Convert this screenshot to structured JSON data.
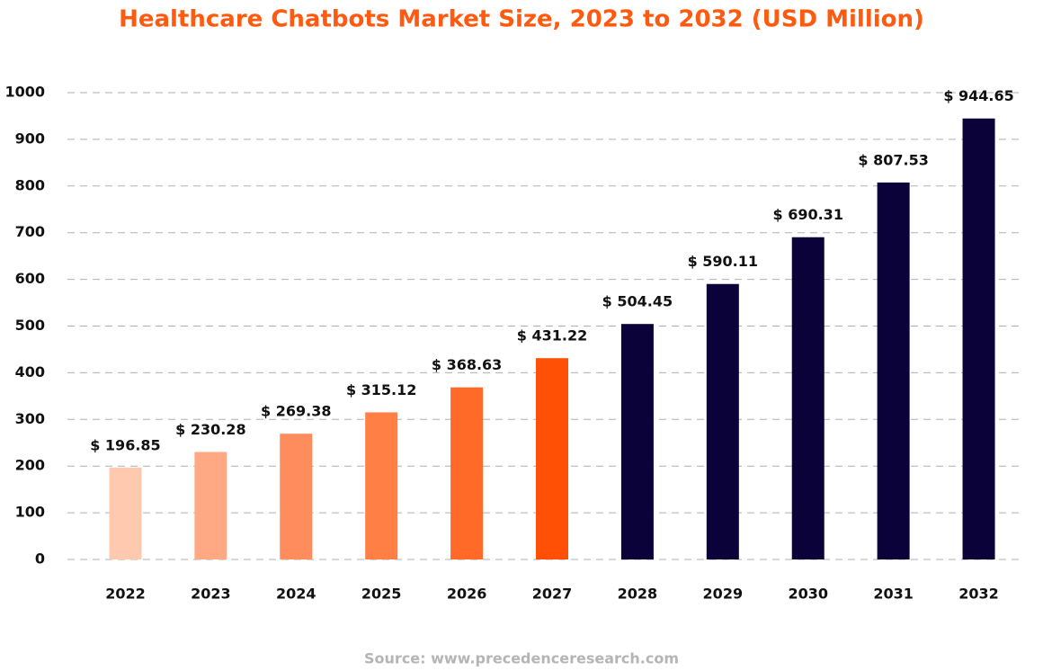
{
  "chart_data": {
    "type": "bar",
    "title": "Healthcare Chatbots Market Size, 2023 to 2032 (USD Million)",
    "source": "Source: www.precedenceresearch.com",
    "categories": [
      "2022",
      "2023",
      "2024",
      "2025",
      "2026",
      "2027",
      "2028",
      "2029",
      "2030",
      "2031",
      "2032"
    ],
    "values": [
      196.85,
      230.28,
      269.38,
      315.12,
      368.63,
      431.22,
      504.45,
      590.11,
      690.31,
      807.53,
      944.65
    ],
    "value_labels": [
      "$ 196.85",
      "$ 230.28",
      "$ 269.38",
      "$ 315.12",
      "$ 368.63",
      "$ 431.22",
      "$ 504.45",
      "$ 590.11",
      "$ 690.31",
      "$ 807.53",
      "$ 944.65"
    ],
    "colors": [
      "#ffc9b0",
      "#ffa984",
      "#ff8c5c",
      "#ff7f45",
      "#ff6a28",
      "#ff5005",
      "#0a0238",
      "#0a0238",
      "#0a0238",
      "#0a0238",
      "#0a0238"
    ],
    "ylim": [
      0,
      1000
    ],
    "yticks": [
      0,
      100,
      200,
      300,
      400,
      500,
      600,
      700,
      800,
      900,
      1000
    ],
    "grid": true
  }
}
